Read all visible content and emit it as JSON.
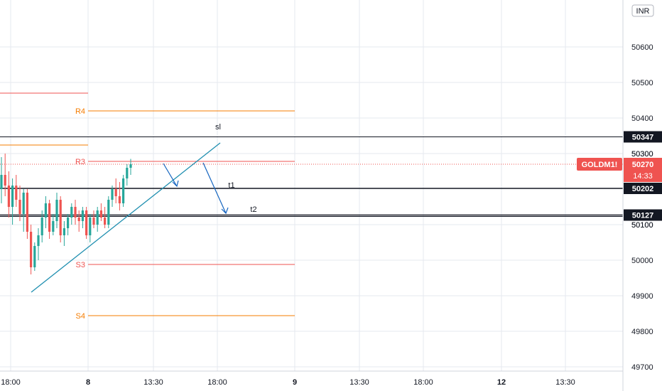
{
  "chart_data": {
    "type": "candlestick",
    "symbol": "GOLDM1!",
    "currency_label": "INR",
    "last_price": "50270",
    "countdown": "14:33",
    "ylim": [
      49690,
      50750
    ],
    "y_ticks": [
      50600,
      50500,
      50400,
      50300,
      50100,
      50000,
      49900,
      49800,
      49700
    ],
    "x_ticks": [
      "18:00",
      "8",
      "13:30",
      "18:00",
      "9",
      "13:30",
      "18:00",
      "12",
      "13:30"
    ],
    "pivot_levels": [
      {
        "label": "R4",
        "value": 50420,
        "color": "#f57c00"
      },
      {
        "label": "R3",
        "value": 50278,
        "color": "#ef5350"
      },
      {
        "label": "S3",
        "value": 49988,
        "color": "#ef5350"
      },
      {
        "label": "S4",
        "value": 49844,
        "color": "#f57c00"
      }
    ],
    "prev_levels": [
      {
        "value": 50470,
        "color": "#ef5350"
      },
      {
        "value": 50324,
        "color": "#f57c00"
      }
    ],
    "trade_levels": [
      {
        "label": "sl",
        "value": 50347
      },
      {
        "label": "t1",
        "value": 50202
      },
      {
        "label": "t2",
        "value": 50127
      }
    ],
    "axis_badges": [
      "50347",
      "50202",
      "50127"
    ],
    "candles": [
      [
        50200,
        50290,
        50160,
        50240
      ],
      [
        50240,
        50300,
        50180,
        50210
      ],
      [
        50210,
        50250,
        50120,
        50150
      ],
      [
        50150,
        50230,
        50100,
        50210
      ],
      [
        50210,
        50240,
        50150,
        50170
      ],
      [
        50170,
        50210,
        50110,
        50130
      ],
      [
        50130,
        50200,
        50080,
        50190
      ],
      [
        50190,
        50200,
        50060,
        50080
      ],
      [
        50080,
        50100,
        49960,
        49980
      ],
      [
        49980,
        50050,
        49970,
        50040
      ],
      [
        50040,
        50090,
        50000,
        50070
      ],
      [
        50070,
        50140,
        50050,
        50120
      ],
      [
        50120,
        50180,
        50090,
        50160
      ],
      [
        50160,
        50170,
        50060,
        50080
      ],
      [
        50080,
        50130,
        50070,
        50110
      ],
      [
        50110,
        50190,
        50090,
        50170
      ],
      [
        50170,
        50180,
        50050,
        50070
      ],
      [
        50070,
        50110,
        50040,
        50090
      ],
      [
        50090,
        50130,
        50070,
        50120
      ],
      [
        50120,
        50160,
        50100,
        50150
      ],
      [
        50150,
        50170,
        50100,
        50120
      ],
      [
        50120,
        50140,
        50080,
        50110
      ],
      [
        50110,
        50150,
        50090,
        50140
      ],
      [
        50140,
        50150,
        50060,
        50070
      ],
      [
        50070,
        50130,
        50050,
        50120
      ],
      [
        50120,
        50140,
        50090,
        50100
      ],
      [
        50100,
        50150,
        50080,
        50140
      ],
      [
        50140,
        50160,
        50110,
        50120
      ],
      [
        50120,
        50150,
        50090,
        50100
      ],
      [
        50100,
        50180,
        50090,
        50170
      ],
      [
        50170,
        50210,
        50150,
        50200
      ],
      [
        50200,
        50230,
        50160,
        50180
      ],
      [
        50180,
        50220,
        50140,
        50160
      ],
      [
        50160,
        50240,
        50150,
        50230
      ],
      [
        50230,
        50270,
        50210,
        50260
      ],
      [
        50260,
        50285,
        50240,
        50270
      ]
    ],
    "trendline": [
      [
        49910,
        50330
      ]
    ]
  }
}
